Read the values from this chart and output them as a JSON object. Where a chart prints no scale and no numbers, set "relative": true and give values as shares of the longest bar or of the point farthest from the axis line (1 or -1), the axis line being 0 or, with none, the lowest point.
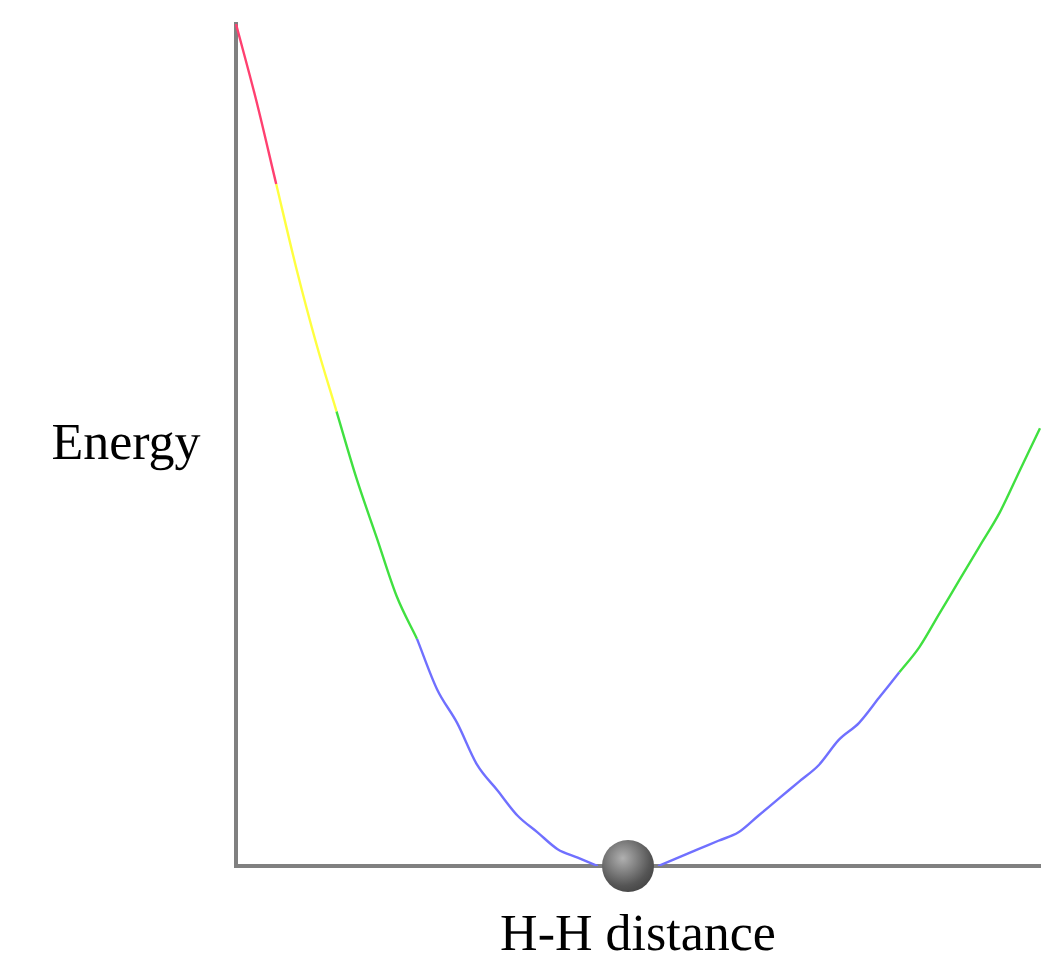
{
  "chart_data": {
    "type": "line",
    "relative": true,
    "xlabel": "H-H distance",
    "ylabel": "Energy",
    "marker": "none",
    "grid": false,
    "legend": false,
    "categories": [
      null,
      null,
      null,
      null,
      null,
      null,
      null,
      null,
      null,
      null,
      null,
      null,
      null,
      null,
      null,
      null,
      null,
      null,
      null,
      null,
      null,
      null,
      null,
      null,
      null,
      null,
      null,
      null,
      null,
      null,
      null,
      null,
      null,
      null,
      null,
      null,
      null,
      null,
      null,
      null,
      null
    ],
    "series": [
      {
        "color": "#ff4070",
        "values": [
          1.0,
          0.91,
          0.81,
          null,
          null,
          null,
          null,
          null,
          null,
          null,
          null,
          null,
          null,
          null,
          null,
          null,
          null,
          null,
          null,
          null,
          null,
          null,
          null,
          null,
          null,
          null,
          null,
          null,
          null,
          null,
          null,
          null,
          null,
          null,
          null,
          null,
          null,
          null,
          null,
          null,
          null
        ]
      },
      {
        "color": "#ffff40",
        "values": [
          null,
          null,
          0.81,
          0.71,
          0.62,
          0.54,
          null,
          null,
          null,
          null,
          null,
          null,
          null,
          null,
          null,
          null,
          null,
          null,
          null,
          null,
          null,
          null,
          null,
          null,
          null,
          null,
          null,
          null,
          null,
          null,
          null,
          null,
          null,
          null,
          null,
          null,
          null,
          null,
          null,
          null,
          null
        ]
      },
      {
        "color": "#40e040",
        "values": [
          null,
          null,
          null,
          null,
          null,
          0.54,
          0.46,
          0.39,
          0.32,
          0.27,
          null,
          null,
          null,
          null,
          null,
          null,
          null,
          null,
          null,
          null,
          null,
          null,
          null,
          null,
          null,
          null,
          null,
          null,
          null,
          null,
          null,
          null,
          null,
          null,
          null,
          null,
          null,
          null,
          null,
          null,
          null
        ]
      },
      {
        "color": "#7070ff",
        "values": [
          null,
          null,
          null,
          null,
          null,
          null,
          null,
          null,
          null,
          0.27,
          0.21,
          0.17,
          0.12,
          0.09,
          0.06,
          0.04,
          0.02,
          0.01,
          0.0,
          null,
          null,
          0.0,
          0.01,
          0.02,
          0.03,
          0.04,
          0.06,
          0.08,
          0.1,
          0.12,
          0.15,
          0.17,
          0.2,
          0.23,
          null,
          null,
          null,
          null,
          null,
          null,
          null
        ]
      },
      {
        "color": "#40e040",
        "values": [
          null,
          null,
          null,
          null,
          null,
          null,
          null,
          null,
          null,
          null,
          null,
          null,
          null,
          null,
          null,
          null,
          null,
          null,
          null,
          null,
          null,
          null,
          null,
          null,
          null,
          null,
          null,
          null,
          null,
          null,
          null,
          null,
          null,
          0.23,
          0.26,
          0.3,
          0.34,
          0.38,
          0.42,
          0.47,
          0.52
        ]
      }
    ]
  }
}
